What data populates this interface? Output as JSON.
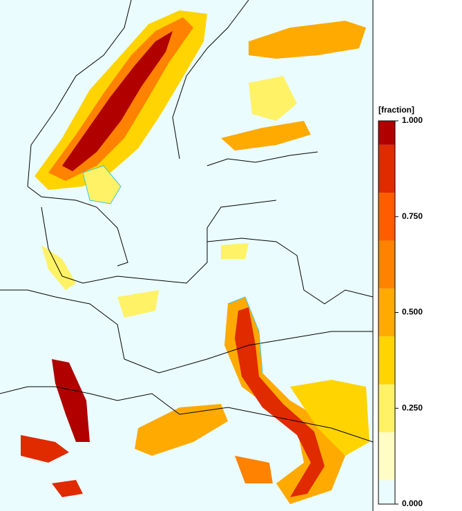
{
  "colorbar": {
    "label": "[fraction]",
    "lim": [
      0,
      1
    ],
    "ticks": [
      {
        "value": 0,
        "label": "0.000"
      },
      {
        "value": 0.25,
        "label": "0.250"
      },
      {
        "value": 0.5,
        "label": "0.500"
      },
      {
        "value": 0.75,
        "label": "0.750"
      },
      {
        "value": 1,
        "label": "1.000"
      }
    ],
    "bounds": [
      0,
      0.0625,
      0.1875,
      0.3125,
      0.4375,
      0.5625,
      0.6875,
      0.8125,
      0.9375,
      1
    ],
    "colors": [
      "#eafcfd",
      "#fffcc4",
      "#fff266",
      "#ffd400",
      "#ffaa00",
      "#ff8200",
      "#ff5c00",
      "#e02a00",
      "#b00000"
    ]
  }
}
